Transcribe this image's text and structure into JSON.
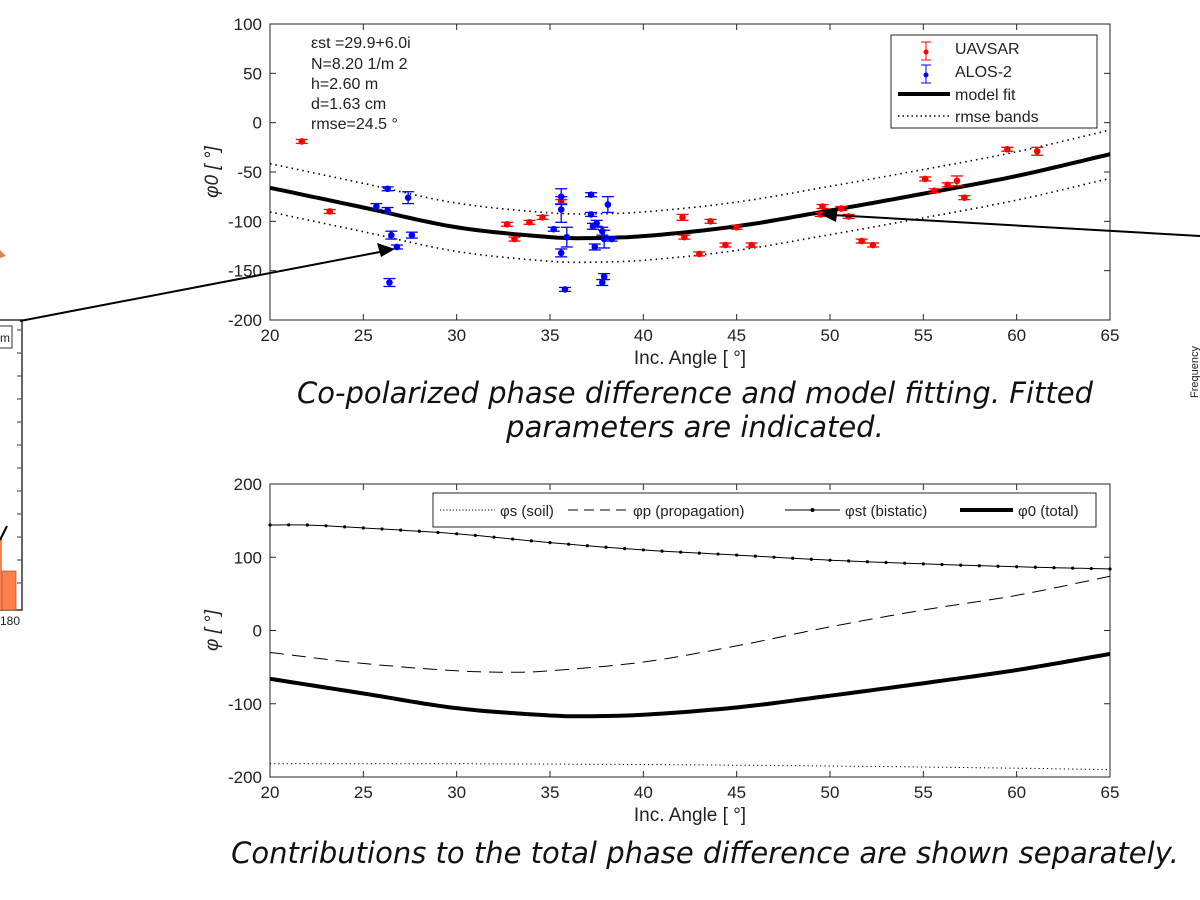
{
  "captions": {
    "top": "Co-polarized phase difference and model fitting. Fitted parameters are indicated.",
    "bottom": "Contributions to the total phase difference are shown separately."
  },
  "side_panels": {
    "left_legend_fragment": "m",
    "left_tick": "180",
    "right_ylabel": "Frequency"
  },
  "colors": {
    "uavsar": "#ff0000",
    "alos2": "#0000ff",
    "fit": "#000000",
    "histogram": "#ff7f50"
  },
  "chart_data": [
    {
      "type": "scatter",
      "xlabel": "Inc. Angle [   °]",
      "ylabel": "φ0 [ °]",
      "xlim": [
        20,
        65
      ],
      "ylim": [
        -200,
        100
      ],
      "xticks": [
        "20",
        "25",
        "30",
        "35",
        "40",
        "45",
        "50",
        "55",
        "60",
        "65"
      ],
      "yticks": [
        "100",
        "50",
        "0",
        "-50",
        "-100",
        "-150",
        "-200"
      ],
      "legend_position": "top-right",
      "annotation": [
        "εst =29.9+6.0i",
        "N=8.20 1/m  2",
        "h=2.60 m",
        "d=1.63 cm",
        "rmse=24.5   °"
      ],
      "legend": [
        "UAVSAR",
        "ALOS-2",
        "model fit",
        "rmse bands"
      ],
      "rmse": 24.5,
      "series": [
        {
          "name": "UAVSAR",
          "color": "#ff0000",
          "points": [
            [
              21.7,
              -19,
              2
            ],
            [
              23.2,
              -90,
              2
            ],
            [
              32.7,
              -103,
              2
            ],
            [
              33.1,
              -118,
              2
            ],
            [
              33.9,
              -101,
              2
            ],
            [
              34.6,
              -96,
              2
            ],
            [
              35.6,
              -80,
              2
            ],
            [
              42.1,
              -96,
              3
            ],
            [
              42.2,
              -116,
              2
            ],
            [
              43.0,
              -133,
              2
            ],
            [
              43.6,
              -100,
              2
            ],
            [
              44.4,
              -124,
              2
            ],
            [
              45.0,
              -106,
              2
            ],
            [
              45.8,
              -124,
              2
            ],
            [
              49.6,
              -85,
              2
            ],
            [
              49.5,
              -93,
              2
            ],
            [
              50.6,
              -87,
              2
            ],
            [
              51.0,
              -95,
              2
            ],
            [
              51.7,
              -120,
              2
            ],
            [
              52.3,
              -124,
              2
            ],
            [
              55.1,
              -57,
              2
            ],
            [
              55.6,
              -69,
              2
            ],
            [
              56.3,
              -63,
              2
            ],
            [
              56.8,
              -59,
              5
            ],
            [
              57.2,
              -76,
              2
            ],
            [
              59.5,
              -27,
              2
            ],
            [
              61.1,
              -29,
              4
            ]
          ]
        },
        {
          "name": "ALOS-2",
          "color": "#0000ff",
          "points": [
            [
              26.3,
              -67,
              2
            ],
            [
              27.4,
              -76,
              6
            ],
            [
              25.7,
              -85,
              3
            ],
            [
              26.3,
              -89,
              3
            ],
            [
              26.5,
              -114,
              4
            ],
            [
              27.6,
              -114,
              3
            ],
            [
              26.8,
              -126,
              2
            ],
            [
              26.4,
              -162,
              4
            ],
            [
              35.2,
              -108,
              2
            ],
            [
              35.6,
              -75,
              8
            ],
            [
              35.6,
              -88,
              13
            ],
            [
              35.9,
              -116,
              10
            ],
            [
              35.6,
              -132,
              4
            ],
            [
              35.8,
              -169,
              2
            ],
            [
              37.2,
              -73,
              2
            ],
            [
              37.2,
              -93,
              2
            ],
            [
              37.5,
              -102,
              3
            ],
            [
              37.3,
              -105,
              3
            ],
            [
              37.8,
              -110,
              4
            ],
            [
              38.1,
              -83,
              8
            ],
            [
              37.9,
              -118,
              9
            ],
            [
              38.3,
              -118,
              2
            ],
            [
              37.4,
              -126,
              3
            ],
            [
              37.9,
              -156,
              3
            ],
            [
              37.8,
              -162,
              3
            ]
          ]
        },
        {
          "name": "model fit",
          "x": [
            20,
            25,
            30,
            35,
            37,
            40,
            45,
            50,
            55,
            60,
            65
          ],
          "y": [
            -66,
            -86,
            -106,
            -116,
            -117,
            -115,
            -105,
            -89,
            -72,
            -54,
            -32
          ]
        }
      ]
    },
    {
      "type": "line",
      "xlabel": "Inc. Angle [   °]",
      "ylabel": "φ [ °]",
      "xlim": [
        20,
        65
      ],
      "ylim": [
        -200,
        200
      ],
      "xticks": [
        "20",
        "25",
        "30",
        "35",
        "40",
        "45",
        "50",
        "55",
        "60",
        "65"
      ],
      "yticks": [
        "200",
        "100",
        "0",
        "-100",
        "-200"
      ],
      "legend_position": "top",
      "series": [
        {
          "name": "φs (soil)",
          "style": "dotted",
          "x": [
            20,
            30,
            40,
            50,
            60,
            65
          ],
          "y": [
            -182,
            -182,
            -183,
            -185,
            -188,
            -190
          ]
        },
        {
          "name": "φp (propagation)",
          "style": "dashed",
          "x": [
            20,
            25,
            30,
            33,
            35,
            40,
            45,
            50,
            55,
            60,
            65
          ],
          "y": [
            -30,
            -45,
            -55,
            -57,
            -55,
            -43,
            -21,
            5,
            28,
            48,
            74
          ]
        },
        {
          "name": "φst (bistatic)",
          "style": "line-dot",
          "x": [
            20,
            22,
            25,
            30,
            35,
            40,
            45,
            50,
            55,
            60,
            65
          ],
          "y": [
            144,
            144,
            140,
            132,
            120,
            110,
            103,
            96,
            91,
            87,
            84
          ]
        },
        {
          "name": "φ0 (total)",
          "style": "thick",
          "x": [
            20,
            25,
            30,
            35,
            37,
            40,
            45,
            50,
            55,
            60,
            65
          ],
          "y": [
            -66,
            -86,
            -106,
            -116,
            -117,
            -115,
            -105,
            -89,
            -72,
            -54,
            -32
          ]
        }
      ]
    }
  ]
}
